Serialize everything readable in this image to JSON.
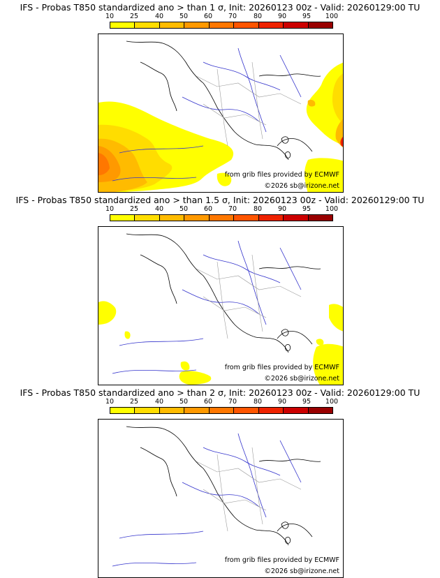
{
  "panels": [
    {
      "title": "IFS - Probas T850  standardized ano > than 1 σ, Init: 20260123 00z - Valid: 20260129:00 TU",
      "threshold_sigma": 1
    },
    {
      "title": "IFS - Probas T850  standardized ano > than 1.5 σ, Init: 20260123 00z - Valid: 20260129:00 TU",
      "threshold_sigma": 1.5
    },
    {
      "title": "IFS - Probas T850  standardized ano > than 2 σ, Init: 20260123 00z - Valid: 20260129:00 TU",
      "threshold_sigma": 2
    }
  ],
  "colorbar": {
    "levels": [
      "10",
      "25",
      "40",
      "50",
      "60",
      "70",
      "80",
      "90",
      "95",
      "100"
    ],
    "colors": [
      "#ffff00",
      "#ffdd00",
      "#ffbb00",
      "#ff9900",
      "#ff7700",
      "#ff5500",
      "#ee2200",
      "#cc0000",
      "#990000",
      "#550000"
    ]
  },
  "map": {
    "credit": "from grib files provided by ECMWF",
    "copyright": "©2026 sb@irizone.net",
    "colors": {
      "coast": "#000000",
      "rivers": "#3333cc",
      "borders": "#999999"
    }
  }
}
